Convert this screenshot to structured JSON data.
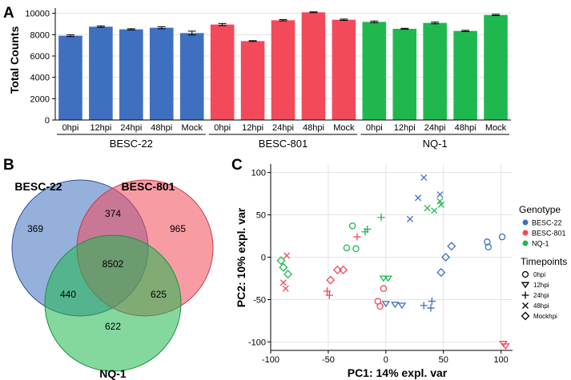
{
  "panel_labels": {
    "a": "A",
    "b": "B",
    "c": "C"
  },
  "colors": {
    "blue": "#3f6fbf",
    "red": "#f24a5a",
    "green": "#1fb84f",
    "grid": "#e3e3e3",
    "axis": "#000000"
  },
  "chart_data": [
    {
      "type": "bar",
      "title": "",
      "ylabel": "Total Counts",
      "ylim": [
        0,
        10500
      ],
      "yticks": [
        0,
        2000,
        4000,
        6000,
        8000,
        10000
      ],
      "ytick_labels": [
        "0",
        "2000",
        "4000",
        "6000",
        "8000",
        "10000"
      ],
      "grid": true,
      "groups": [
        {
          "name": "BESC-22",
          "color": "#3f6fbf",
          "categories": [
            "0hpi",
            "12hpi",
            "24hpi",
            "48hpi",
            "Mock"
          ],
          "values": [
            7900,
            8750,
            8500,
            8650,
            8150
          ],
          "errors": [
            80,
            70,
            60,
            100,
            180
          ]
        },
        {
          "name": "BESC-801",
          "color": "#f24a5a",
          "categories": [
            "0hpi",
            "12hpi",
            "24hpi",
            "48hpi",
            "Mock"
          ],
          "values": [
            8950,
            7400,
            9350,
            10100,
            9400
          ],
          "errors": [
            100,
            40,
            60,
            40,
            60
          ]
        },
        {
          "name": "NQ-1",
          "color": "#1fb84f",
          "categories": [
            "0hpi",
            "12hpi",
            "24hpi",
            "48hpi",
            "Mock"
          ],
          "values": [
            9200,
            8550,
            9100,
            8350,
            9850
          ],
          "errors": [
            80,
            50,
            80,
            60,
            60
          ]
        }
      ]
    },
    {
      "type": "venn",
      "sets": [
        "BESC-22",
        "BESC-801",
        "NQ-1"
      ],
      "colors": [
        "#3f6fbf",
        "#f24a5a",
        "#1fb84f"
      ],
      "regions": [
        {
          "sets": [
            "BESC-22"
          ],
          "value": "369"
        },
        {
          "sets": [
            "BESC-801"
          ],
          "value": "965"
        },
        {
          "sets": [
            "NQ-1"
          ],
          "value": "622"
        },
        {
          "sets": [
            "BESC-22",
            "BESC-801"
          ],
          "value": "374"
        },
        {
          "sets": [
            "BESC-22",
            "NQ-1"
          ],
          "value": "440"
        },
        {
          "sets": [
            "BESC-801",
            "NQ-1"
          ],
          "value": "625"
        },
        {
          "sets": [
            "BESC-22",
            "BESC-801",
            "NQ-1"
          ],
          "value": "8502"
        }
      ]
    },
    {
      "type": "scatter",
      "xlabel": "PC1: 14% expl. var",
      "ylabel": "PC2: 10% expl. var",
      "xlim": [
        -100,
        110
      ],
      "ylim": [
        -110,
        110
      ],
      "xticks": [
        -100,
        -50,
        0,
        50,
        100
      ],
      "yticks": [
        -100,
        -50,
        0,
        50,
        100
      ],
      "grid": true,
      "legend": {
        "genotype_title": "Genotype",
        "genotypes": [
          {
            "name": "BESC-22",
            "color": "#3f6fbf"
          },
          {
            "name": "BESC-801",
            "color": "#f24a5a"
          },
          {
            "name": "NQ-1",
            "color": "#1fb84f"
          }
        ],
        "timepoint_title": "Timepoints",
        "timepoints": [
          {
            "name": "0hpi",
            "shape": "circle"
          },
          {
            "name": "12hpi",
            "shape": "triangle"
          },
          {
            "name": "24hpi",
            "shape": "plus"
          },
          {
            "name": "48hpi",
            "shape": "cross"
          },
          {
            "name": "Mockhpi",
            "shape": "diamond"
          }
        ]
      },
      "points": [
        {
          "x": 88,
          "y": 18,
          "g": "BESC-22",
          "t": "0hpi"
        },
        {
          "x": 89,
          "y": 12,
          "g": "BESC-22",
          "t": "0hpi"
        },
        {
          "x": 101,
          "y": 24,
          "g": "BESC-22",
          "t": "0hpi"
        },
        {
          "x": 0,
          "y": -55,
          "g": "BESC-22",
          "t": "12hpi"
        },
        {
          "x": 8,
          "y": -56,
          "g": "BESC-22",
          "t": "12hpi"
        },
        {
          "x": 14,
          "y": -57,
          "g": "BESC-22",
          "t": "12hpi"
        },
        {
          "x": 33,
          "y": -57,
          "g": "BESC-22",
          "t": "24hpi"
        },
        {
          "x": 40,
          "y": -52,
          "g": "BESC-22",
          "t": "24hpi"
        },
        {
          "x": 39,
          "y": -60,
          "g": "BESC-22",
          "t": "24hpi"
        },
        {
          "x": 33,
          "y": 94,
          "g": "BESC-22",
          "t": "48hpi"
        },
        {
          "x": 28,
          "y": 70,
          "g": "BESC-22",
          "t": "48hpi"
        },
        {
          "x": 47,
          "y": 74,
          "g": "BESC-22",
          "t": "48hpi"
        },
        {
          "x": 21,
          "y": 45,
          "g": "BESC-22",
          "t": "48hpi"
        },
        {
          "x": 52,
          "y": 0,
          "g": "BESC-22",
          "t": "Mockhpi"
        },
        {
          "x": 57,
          "y": 13,
          "g": "BESC-22",
          "t": "Mockhpi"
        },
        {
          "x": 48,
          "y": -18,
          "g": "BESC-22",
          "t": "Mockhpi"
        },
        {
          "x": -5,
          "y": -58,
          "g": "BESC-801",
          "t": "0hpi"
        },
        {
          "x": -7,
          "y": -52,
          "g": "BESC-801",
          "t": "0hpi"
        },
        {
          "x": -2,
          "y": -37,
          "g": "BESC-801",
          "t": "0hpi"
        },
        {
          "x": 102,
          "y": -102,
          "g": "BESC-801",
          "t": "12hpi"
        },
        {
          "x": 104,
          "y": -105,
          "g": "BESC-801",
          "t": "12hpi"
        },
        {
          "x": -51,
          "y": -40,
          "g": "BESC-801",
          "t": "24hpi"
        },
        {
          "x": -49,
          "y": -45,
          "g": "BESC-801",
          "t": "24hpi"
        },
        {
          "x": -25,
          "y": 24,
          "g": "BESC-801",
          "t": "24hpi"
        },
        {
          "x": -89,
          "y": -30,
          "g": "BESC-801",
          "t": "48hpi"
        },
        {
          "x": -87,
          "y": -37,
          "g": "BESC-801",
          "t": "48hpi"
        },
        {
          "x": -86,
          "y": 2,
          "g": "BESC-801",
          "t": "48hpi"
        },
        {
          "x": -48,
          "y": -27,
          "g": "BESC-801",
          "t": "Mockhpi"
        },
        {
          "x": -42,
          "y": -15,
          "g": "BESC-801",
          "t": "Mockhpi"
        },
        {
          "x": -37,
          "y": -15,
          "g": "BESC-801",
          "t": "Mockhpi"
        },
        {
          "x": -29,
          "y": 37,
          "g": "NQ-1",
          "t": "0hpi"
        },
        {
          "x": -26,
          "y": 10,
          "g": "NQ-1",
          "t": "0hpi"
        },
        {
          "x": -34,
          "y": 11,
          "g": "NQ-1",
          "t": "0hpi"
        },
        {
          "x": -2,
          "y": -25,
          "g": "NQ-1",
          "t": "12hpi"
        },
        {
          "x": 2,
          "y": -25,
          "g": "NQ-1",
          "t": "12hpi"
        },
        {
          "x": -4,
          "y": 47,
          "g": "NQ-1",
          "t": "24hpi"
        },
        {
          "x": -16,
          "y": 33,
          "g": "NQ-1",
          "t": "24hpi"
        },
        {
          "x": -18,
          "y": 30,
          "g": "NQ-1",
          "t": "24hpi"
        },
        {
          "x": 36,
          "y": 58,
          "g": "NQ-1",
          "t": "48hpi"
        },
        {
          "x": 42,
          "y": 55,
          "g": "NQ-1",
          "t": "48hpi"
        },
        {
          "x": 48,
          "y": 62,
          "g": "NQ-1",
          "t": "48hpi"
        },
        {
          "x": 47,
          "y": 66,
          "g": "NQ-1",
          "t": "48hpi"
        },
        {
          "x": -91,
          "y": -4,
          "g": "NQ-1",
          "t": "Mockhpi"
        },
        {
          "x": -89,
          "y": -12,
          "g": "NQ-1",
          "t": "Mockhpi"
        },
        {
          "x": -85,
          "y": -20,
          "g": "NQ-1",
          "t": "Mockhpi"
        }
      ]
    }
  ]
}
